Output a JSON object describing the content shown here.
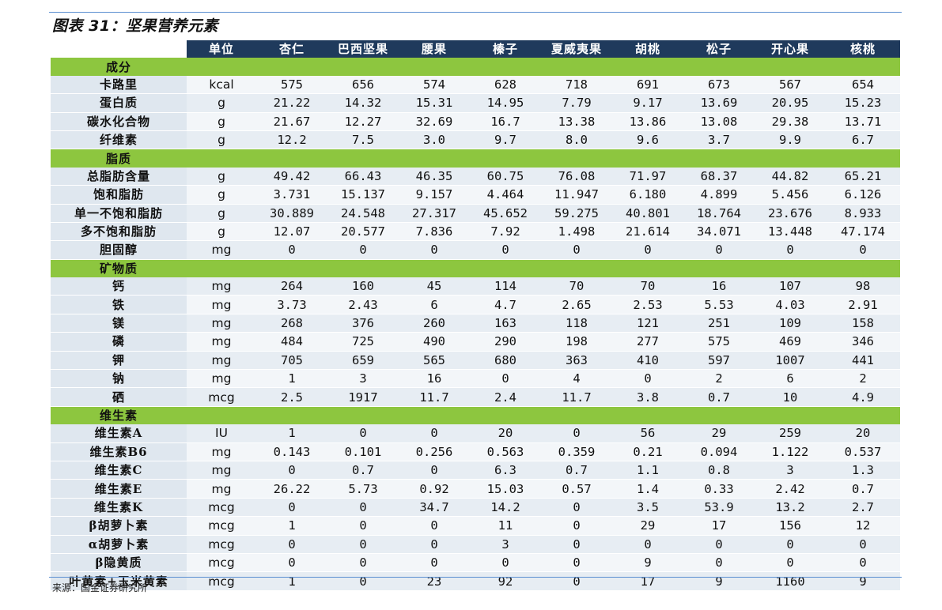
{
  "title": "图表 31：坚果营养元素",
  "source": "来源：国金证券研究所",
  "header": [
    "单位",
    "杏仁",
    "巴西坚果",
    "腰果",
    "榛子",
    "夏威夷果",
    "胡桃",
    "松子",
    "开心果",
    "核桃"
  ],
  "sections": [
    {
      "label": "成分",
      "rows": [
        {
          "name": "卡路里",
          "unit": "kcal",
          "values": [
            "575",
            "656",
            "574",
            "628",
            "718",
            "691",
            "673",
            "567",
            "654"
          ]
        },
        {
          "name": "蛋白质",
          "unit": "g",
          "values": [
            "21.22",
            "14.32",
            "15.31",
            "14.95",
            "7.79",
            "9.17",
            "13.69",
            "20.95",
            "15.23"
          ]
        },
        {
          "name": "碳水化合物",
          "unit": "g",
          "values": [
            "21.67",
            "12.27",
            "32.69",
            "16.7",
            "13.38",
            "13.86",
            "13.08",
            "29.38",
            "13.71"
          ]
        },
        {
          "name": "纤维素",
          "unit": "g",
          "values": [
            "12.2",
            "7.5",
            "3.0",
            "9.7",
            "8.0",
            "9.6",
            "3.7",
            "9.9",
            "6.7"
          ]
        }
      ]
    },
    {
      "label": "脂质",
      "rows": [
        {
          "name": "总脂肪含量",
          "unit": "g",
          "values": [
            "49.42",
            "66.43",
            "46.35",
            "60.75",
            "76.08",
            "71.97",
            "68.37",
            "44.82",
            "65.21"
          ]
        },
        {
          "name": "饱和脂肪",
          "unit": "g",
          "values": [
            "3.731",
            "15.137",
            "9.157",
            "4.464",
            "11.947",
            "6.180",
            "4.899",
            "5.456",
            "6.126"
          ]
        },
        {
          "name": "单一不饱和脂肪",
          "unit": "g",
          "values": [
            "30.889",
            "24.548",
            "27.317",
            "45.652",
            "59.275",
            "40.801",
            "18.764",
            "23.676",
            "8.933"
          ]
        },
        {
          "name": "多不饱和脂肪",
          "unit": "g",
          "values": [
            "12.07",
            "20.577",
            "7.836",
            "7.92",
            "1.498",
            "21.614",
            "34.071",
            "13.448",
            "47.174"
          ]
        },
        {
          "name": "胆固醇",
          "unit": "mg",
          "values": [
            "0",
            "0",
            "0",
            "0",
            "0",
            "0",
            "0",
            "0",
            "0"
          ]
        }
      ]
    },
    {
      "label": "矿物质",
      "rows": [
        {
          "name": "钙",
          "unit": "mg",
          "values": [
            "264",
            "160",
            "45",
            "114",
            "70",
            "70",
            "16",
            "107",
            "98"
          ]
        },
        {
          "name": "铁",
          "unit": "mg",
          "values": [
            "3.73",
            "2.43",
            "6",
            "4.7",
            "2.65",
            "2.53",
            "5.53",
            "4.03",
            "2.91"
          ]
        },
        {
          "name": "镁",
          "unit": "mg",
          "values": [
            "268",
            "376",
            "260",
            "163",
            "118",
            "121",
            "251",
            "109",
            "158"
          ]
        },
        {
          "name": "磷",
          "unit": "mg",
          "values": [
            "484",
            "725",
            "490",
            "290",
            "198",
            "277",
            "575",
            "469",
            "346"
          ]
        },
        {
          "name": "钾",
          "unit": "mg",
          "values": [
            "705",
            "659",
            "565",
            "680",
            "363",
            "410",
            "597",
            "1007",
            "441"
          ]
        },
        {
          "name": "钠",
          "unit": "mg",
          "values": [
            "1",
            "3",
            "16",
            "0",
            "4",
            "0",
            "2",
            "6",
            "2"
          ]
        },
        {
          "name": "硒",
          "unit": "mcg",
          "values": [
            "2.5",
            "1917",
            "11.7",
            "2.4",
            "11.7",
            "3.8",
            "0.7",
            "10",
            "4.9"
          ]
        }
      ]
    },
    {
      "label": "维生素",
      "rows": [
        {
          "name": "维生素A",
          "unit": "IU",
          "values": [
            "1",
            "0",
            "0",
            "20",
            "0",
            "56",
            "29",
            "259",
            "20"
          ]
        },
        {
          "name": "维生素B6",
          "unit": "mg",
          "values": [
            "0.143",
            "0.101",
            "0.256",
            "0.563",
            "0.359",
            "0.21",
            "0.094",
            "1.122",
            "0.537"
          ]
        },
        {
          "name": "维生素C",
          "unit": "mg",
          "values": [
            "0",
            "0.7",
            "0",
            "6.3",
            "0.7",
            "1.1",
            "0.8",
            "3",
            "1.3"
          ]
        },
        {
          "name": "维生素E",
          "unit": "mg",
          "values": [
            "26.22",
            "5.73",
            "0.92",
            "15.03",
            "0.57",
            "1.4",
            "0.33",
            "2.42",
            "0.7"
          ]
        },
        {
          "name": "维生素K",
          "unit": "mcg",
          "values": [
            "0",
            "0",
            "34.7",
            "14.2",
            "0",
            "3.5",
            "53.9",
            "13.2",
            "2.7"
          ]
        },
        {
          "name": "β胡萝卜素",
          "unit": "mcg",
          "values": [
            "1",
            "0",
            "0",
            "11",
            "0",
            "29",
            "17",
            "156",
            "12"
          ]
        },
        {
          "name": "α胡萝卜素",
          "unit": "mcg",
          "values": [
            "0",
            "0",
            "0",
            "3",
            "0",
            "0",
            "0",
            "0",
            "0"
          ]
        },
        {
          "name": "β隐黄质",
          "unit": "mcg",
          "values": [
            "0",
            "0",
            "0",
            "0",
            "0",
            "9",
            "0",
            "0",
            "0"
          ]
        },
        {
          "name": "叶黄素+玉米黄素",
          "unit": "mcg",
          "values": [
            "1",
            "0",
            "23",
            "92",
            "0",
            "17",
            "9",
            "1160",
            "9"
          ]
        }
      ]
    }
  ]
}
